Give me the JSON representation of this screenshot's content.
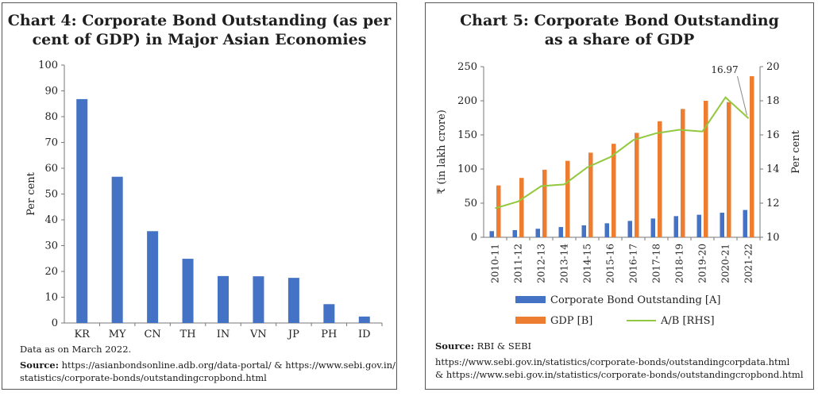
{
  "chart_data": [
    {
      "type": "bar",
      "title_line1": "Chart 4: Corporate Bond Outstanding (as per",
      "title_line2": "cent of GDP) in Major Asian Economies",
      "ylabel": "Per cent",
      "xlabel": "",
      "ylim": [
        0,
        100
      ],
      "yticks": [
        "0",
        "10",
        "20",
        "30",
        "40",
        "50",
        "60",
        "70",
        "80",
        "90",
        "100"
      ],
      "categories": [
        "KR",
        "MY",
        "CN",
        "TH",
        "IN",
        "VN",
        "JP",
        "PH",
        "ID"
      ],
      "values": [
        86.8,
        56.7,
        35.6,
        24.9,
        18.2,
        18.1,
        17.5,
        7.3,
        2.5
      ],
      "bar_color": "#4472c4",
      "grid": false,
      "note": "Data as on March 2022.",
      "source_label": "Source:",
      "source_line1": "https://asianbondsonline.adb.org/data-portal/ & https://www.sebi.gov.in/",
      "source_line2": "statistics/corporate-bonds/outstandingcropbond.html"
    },
    {
      "type": "bar+line",
      "title_line1": "Chart 5: Corporate Bond Outstanding",
      "title_line2": "as a share of GDP",
      "ylabel": "₹ (in lakh crore)",
      "y2label": "Per cent",
      "ylim": [
        0,
        250
      ],
      "y2lim": [
        10,
        20
      ],
      "yticks": [
        "0",
        "50",
        "100",
        "150",
        "200",
        "250"
      ],
      "y2ticks": [
        "10",
        "12",
        "14",
        "16",
        "18",
        "20"
      ],
      "categories": [
        "2010-11",
        "2011-12",
        "2012-13",
        "2013-14",
        "2014-15",
        "2015-16",
        "2016-17",
        "2017-18",
        "2018-19",
        "2019-20",
        "2020-21",
        "2021-22"
      ],
      "series": [
        {
          "name": "Corporate Bond Outstanding [A]",
          "type": "bar",
          "color": "#4472c4",
          "values": [
            9,
            10.5,
            12.5,
            15,
            17.5,
            20.5,
            24,
            27.5,
            31,
            33,
            36,
            40
          ]
        },
        {
          "name": "GDP [B]",
          "type": "bar",
          "color": "#ed7d31",
          "values": [
            76,
            87,
            99,
            112,
            124,
            137,
            153,
            170,
            188,
            200,
            198,
            236
          ]
        },
        {
          "name": "A/B [RHS]",
          "type": "line",
          "color": "#92c83e",
          "axis": "right",
          "values": [
            11.7,
            12.1,
            13.0,
            13.1,
            14.1,
            14.7,
            15.7,
            16.1,
            16.3,
            16.2,
            18.2,
            16.97
          ]
        }
      ],
      "annotation": "16.97",
      "grid": false,
      "source_label": "Source:",
      "source_text": "RBI & SEBI",
      "source_line1": "https://www.sebi.gov.in/statistics/corporate-bonds/outstandingcorpdata.html",
      "source_line2": "& https://www.sebi.gov.in/statistics/corporate-bonds/outstandingcropbond.html"
    }
  ]
}
